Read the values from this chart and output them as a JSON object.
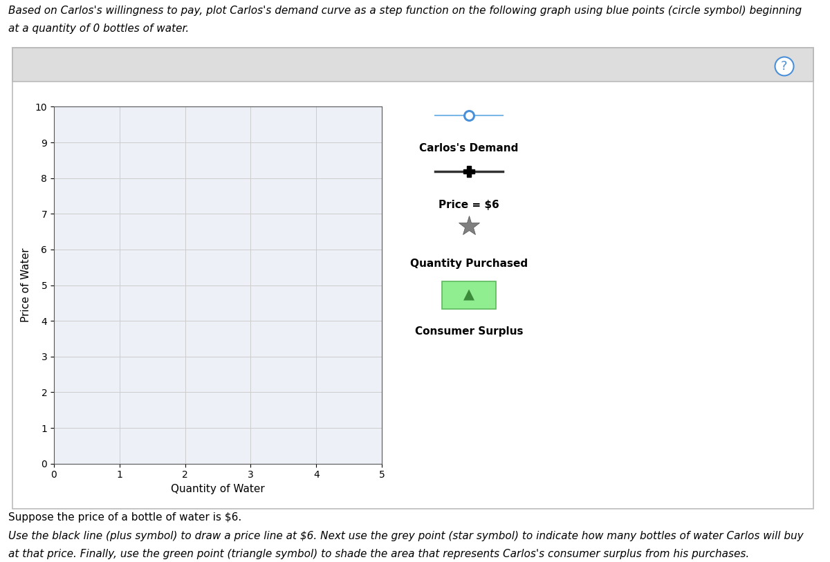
{
  "title_line1": "Based on Carlos's willingness to pay, plot Carlos's demand curve as a step function on the following graph using blue points (circle symbol) beginning",
  "title_line2": "at a quantity of 0 bottles of water.",
  "xlabel": "Quantity of Water",
  "ylabel": "Price of Water",
  "xlim": [
    0,
    5
  ],
  "ylim": [
    0,
    10
  ],
  "xticks": [
    0,
    1,
    2,
    3,
    4,
    5
  ],
  "yticks": [
    0,
    1,
    2,
    3,
    4,
    5,
    6,
    7,
    8,
    9,
    10
  ],
  "grid_color": "#cccccc",
  "plot_bg": "#eef0f8",
  "outer_bg": "#ffffff",
  "demand_line_color": "#7ab8e8",
  "demand_marker_color": "#4a90d9",
  "price_line_color": "#333333",
  "price_marker_color": "#000000",
  "qty_marker_color": "#808080",
  "cs_fill_color": "#90ee90",
  "cs_edge_color": "#5cb85c",
  "cs_triangle_color": "#3a8a3a",
  "legend_label_0": "Carlos's Demand",
  "legend_label_1": "Price = $6",
  "legend_label_2": "Quantity Purchased",
  "legend_label_3": "Consumer Surplus",
  "footnote1": "Suppose the price of a bottle of water is $6.",
  "footnote2": "Use the black line (plus symbol) to draw a price line at $6. Next use the grey point (star symbol) to indicate how many bottles of water Carlos will buy",
  "footnote3": "at that price. Finally, use the green point (triangle symbol) to shade the area that represents Carlos's consumer surplus from his purchases.",
  "question_mark_color": "#4a90d9",
  "outer_box_color": "#bbbbbb",
  "inner_box_top_color": "#dddddd",
  "font_size_title": 11,
  "font_size_axis": 11,
  "font_size_tick": 10,
  "font_size_legend": 11,
  "font_size_footnote": 11
}
